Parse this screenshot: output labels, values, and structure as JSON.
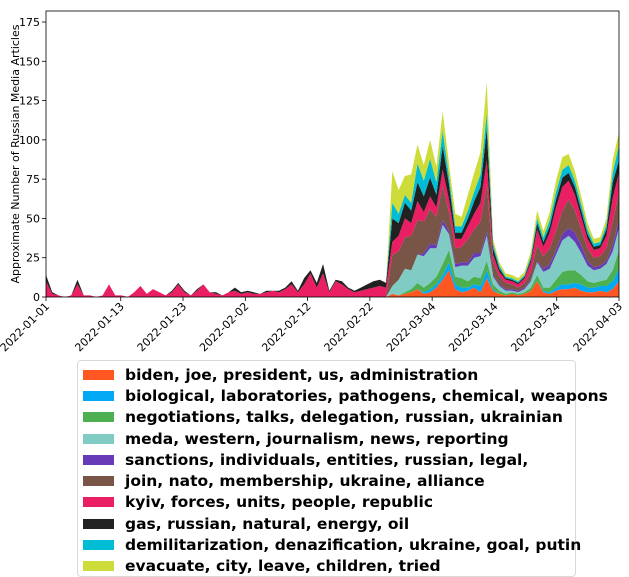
{
  "chart_data": {
    "type": "area",
    "stacked": true,
    "ylabel": "Approximate Number of  Russian Media Articles",
    "xlabel": "",
    "ylim": [
      0,
      182
    ],
    "yticks": [
      0,
      25,
      50,
      75,
      100,
      125,
      150,
      175
    ],
    "xticks": [
      "2022-01-01",
      "2022-01-13",
      "2022-01-23",
      "2022-02-02",
      "2022-02-12",
      "2022-02-22",
      "2022-03-04",
      "2022-03-14",
      "2022-03-24",
      "2022-04-03"
    ],
    "x_start": "2022-01-01",
    "x_end": "2022-04-03",
    "series": [
      {
        "name": "biden, joe, president, us, administration",
        "color": "#ff5722",
        "values": [
          0,
          0,
          0,
          0,
          0,
          0,
          0,
          0,
          0,
          0,
          0,
          0,
          0,
          0,
          0,
          0,
          0,
          0,
          0,
          0,
          0,
          0,
          0,
          0,
          0,
          0,
          0,
          0,
          0,
          0,
          0,
          0,
          0,
          0,
          0,
          0,
          0,
          0,
          0,
          0,
          0,
          0,
          0,
          0,
          0,
          0,
          0,
          0,
          0,
          0,
          0,
          0,
          0,
          0,
          0,
          2,
          1,
          2,
          3,
          5,
          2,
          3,
          6,
          11,
          17,
          5,
          3,
          4,
          6,
          3,
          12,
          4,
          2,
          1,
          2,
          1,
          2,
          4,
          10,
          3,
          2,
          4,
          5,
          5,
          6,
          4,
          3,
          3,
          4,
          3,
          5,
          10
        ]
      },
      {
        "name": "biological, laboratories, pathogens, chemical, weapons",
        "color": "#03a9f4",
        "values": [
          0,
          0,
          0,
          0,
          0,
          0,
          0,
          0,
          0,
          0,
          0,
          0,
          0,
          0,
          0,
          0,
          0,
          0,
          0,
          0,
          0,
          0,
          0,
          0,
          0,
          0,
          0,
          0,
          0,
          0,
          0,
          0,
          0,
          0,
          0,
          0,
          0,
          0,
          0,
          0,
          0,
          0,
          0,
          0,
          0,
          0,
          0,
          0,
          0,
          0,
          0,
          0,
          0,
          0,
          0,
          0,
          0,
          0,
          0,
          0,
          1,
          2,
          2,
          3,
          5,
          3,
          3,
          2,
          2,
          4,
          5,
          1,
          0,
          0,
          0,
          0,
          0,
          0,
          0,
          1,
          1,
          2,
          3,
          3,
          3,
          4,
          3,
          3,
          3,
          4,
          5,
          8
        ]
      },
      {
        "name": "negotiations, talks, delegation, russian, ukrainian",
        "color": "#4caf50",
        "values": [
          0,
          0,
          0,
          0,
          0,
          0,
          0,
          0,
          0,
          0,
          0,
          0,
          0,
          0,
          0,
          0,
          0,
          0,
          0,
          0,
          0,
          0,
          0,
          0,
          0,
          0,
          0,
          0,
          0,
          0,
          0,
          0,
          0,
          0,
          0,
          0,
          0,
          0,
          0,
          0,
          0,
          0,
          0,
          0,
          0,
          0,
          0,
          0,
          0,
          0,
          0,
          0,
          0,
          0,
          0,
          0,
          0,
          1,
          2,
          4,
          3,
          4,
          5,
          7,
          8,
          5,
          6,
          4,
          5,
          5,
          6,
          3,
          2,
          1,
          1,
          1,
          1,
          2,
          4,
          2,
          3,
          5,
          8,
          9,
          8,
          6,
          4,
          3,
          3,
          4,
          7,
          12
        ]
      },
      {
        "name": "meda, western, journalism, news, reporting",
        "color": "#80cbc4",
        "values": [
          0,
          0,
          0,
          0,
          0,
          0,
          0,
          0,
          0,
          0,
          0,
          0,
          0,
          0,
          0,
          0,
          0,
          0,
          0,
          0,
          0,
          0,
          0,
          0,
          0,
          0,
          0,
          0,
          0,
          0,
          0,
          0,
          0,
          0,
          0,
          0,
          0,
          0,
          0,
          0,
          0,
          0,
          0,
          0,
          0,
          0,
          0,
          0,
          0,
          0,
          0,
          0,
          0,
          0,
          0,
          5,
          10,
          15,
          12,
          18,
          20,
          22,
          18,
          25,
          10,
          6,
          8,
          10,
          12,
          14,
          16,
          5,
          3,
          2,
          1,
          1,
          2,
          4,
          8,
          10,
          12,
          16,
          20,
          22,
          18,
          14,
          10,
          8,
          8,
          10,
          12,
          14
        ]
      },
      {
        "name": "sanctions, individuals, entities, russian, legal,",
        "color": "#673ab7",
        "values": [
          0,
          0,
          0,
          0,
          0,
          0,
          0,
          0,
          0,
          0,
          0,
          0,
          0,
          0,
          0,
          0,
          0,
          0,
          0,
          0,
          0,
          0,
          0,
          0,
          0,
          0,
          0,
          0,
          0,
          0,
          0,
          0,
          0,
          0,
          0,
          0,
          0,
          0,
          0,
          0,
          0,
          0,
          0,
          0,
          0,
          0,
          0,
          0,
          0,
          0,
          0,
          0,
          0,
          0,
          0,
          0,
          0,
          0,
          0,
          0,
          2,
          3,
          2,
          3,
          2,
          2,
          2,
          2,
          3,
          2,
          3,
          1,
          1,
          1,
          1,
          1,
          1,
          1,
          1,
          2,
          3,
          3,
          4,
          5,
          6,
          5,
          3,
          2,
          2,
          2,
          4,
          5
        ]
      },
      {
        "name": "join, nato, membership, ukraine, alliance",
        "color": "#795548",
        "values": [
          0,
          0,
          0,
          0,
          0,
          0,
          0,
          0,
          0,
          0,
          0,
          0,
          0,
          0,
          0,
          0,
          0,
          0,
          0,
          0,
          0,
          0,
          0,
          0,
          0,
          0,
          0,
          0,
          0,
          0,
          0,
          0,
          0,
          0,
          0,
          0,
          0,
          0,
          0,
          0,
          0,
          0,
          0,
          0,
          0,
          0,
          0,
          0,
          0,
          0,
          0,
          0,
          0,
          0,
          0,
          20,
          18,
          20,
          22,
          22,
          20,
          22,
          18,
          22,
          12,
          10,
          10,
          15,
          15,
          20,
          30,
          8,
          5,
          4,
          3,
          2,
          3,
          5,
          10,
          8,
          10,
          12,
          15,
          18,
          14,
          10,
          8,
          6,
          6,
          8,
          15,
          18
        ]
      },
      {
        "name": "kyiv, forces, units, people, republic",
        "color": "#e91e63",
        "values": [
          10,
          2,
          1,
          0,
          1,
          8,
          1,
          1,
          0,
          1,
          8,
          1,
          1,
          0,
          3,
          7,
          2,
          5,
          3,
          1,
          3,
          8,
          3,
          1,
          4,
          8,
          3,
          2,
          1,
          3,
          4,
          2,
          3,
          2,
          2,
          3,
          4,
          3,
          5,
          8,
          3,
          8,
          15,
          6,
          15,
          3,
          10,
          8,
          5,
          3,
          4,
          5,
          6,
          7,
          6,
          8,
          10,
          12,
          8,
          12,
          6,
          8,
          6,
          10,
          8,
          6,
          5,
          8,
          10,
          12,
          15,
          5,
          3,
          2,
          2,
          2,
          3,
          6,
          10,
          6,
          10,
          15,
          15,
          12,
          10,
          8,
          6,
          5,
          5,
          8,
          15,
          12
        ]
      },
      {
        "name": "gas, russian, natural, energy, oil",
        "color": "#212121",
        "values": [
          4,
          1,
          0,
          0,
          0,
          3,
          0,
          0,
          0,
          0,
          0,
          0,
          0,
          0,
          0,
          0,
          0,
          0,
          0,
          0,
          1,
          1,
          1,
          0,
          1,
          0,
          0,
          1,
          0,
          0,
          2,
          1,
          1,
          1,
          0,
          1,
          0,
          1,
          1,
          2,
          1,
          4,
          2,
          3,
          6,
          1,
          1,
          2,
          1,
          1,
          2,
          3,
          4,
          4,
          3,
          15,
          8,
          10,
          8,
          12,
          10,
          12,
          8,
          15,
          10,
          4,
          4,
          5,
          8,
          10,
          20,
          4,
          2,
          1,
          1,
          1,
          1,
          2,
          4,
          3,
          4,
          5,
          6,
          5,
          5,
          4,
          3,
          2,
          2,
          4,
          10,
          8
        ]
      },
      {
        "name": "demilitarization, denazification, ukraine, goal, putin",
        "color": "#00bcd4",
        "values": [
          0,
          0,
          0,
          0,
          0,
          0,
          0,
          0,
          0,
          0,
          0,
          0,
          0,
          0,
          0,
          0,
          0,
          0,
          0,
          0,
          0,
          0,
          0,
          0,
          0,
          0,
          0,
          0,
          0,
          0,
          0,
          0,
          0,
          0,
          0,
          0,
          0,
          0,
          0,
          0,
          0,
          0,
          0,
          0,
          0,
          0,
          0,
          0,
          0,
          0,
          0,
          0,
          0,
          0,
          0,
          10,
          6,
          5,
          5,
          12,
          10,
          12,
          8,
          10,
          5,
          4,
          4,
          5,
          6,
          8,
          10,
          3,
          2,
          1,
          1,
          1,
          1,
          2,
          3,
          3,
          4,
          5,
          5,
          5,
          4,
          4,
          3,
          2,
          2,
          3,
          6,
          10
        ]
      },
      {
        "name": "evacuate, city, leave, children, tried",
        "color": "#cddc39",
        "values": [
          0,
          0,
          0,
          0,
          0,
          0,
          0,
          0,
          0,
          0,
          0,
          0,
          0,
          0,
          0,
          0,
          0,
          0,
          0,
          0,
          0,
          0,
          0,
          0,
          0,
          0,
          0,
          0,
          0,
          0,
          0,
          0,
          0,
          0,
          0,
          0,
          0,
          0,
          0,
          0,
          0,
          0,
          0,
          0,
          0,
          0,
          0,
          0,
          0,
          0,
          0,
          0,
          0,
          0,
          0,
          20,
          15,
          12,
          18,
          12,
          10,
          12,
          10,
          12,
          8,
          8,
          6,
          10,
          12,
          14,
          20,
          3,
          2,
          2,
          2,
          2,
          2,
          3,
          5,
          4,
          5,
          7,
          8,
          7,
          6,
          5,
          4,
          3,
          3,
          4,
          8,
          8
        ]
      }
    ]
  }
}
